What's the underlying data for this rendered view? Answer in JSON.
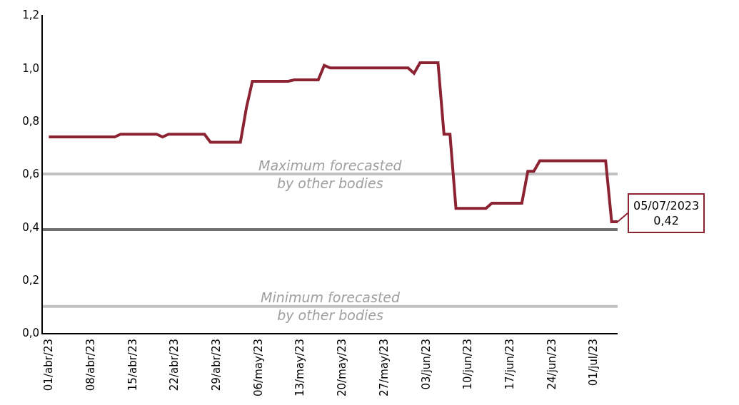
{
  "chart_data": {
    "type": "line",
    "x": [
      "2023-04-01",
      "2023-04-12",
      "2023-04-13",
      "2023-04-19",
      "2023-04-20",
      "2023-04-21",
      "2023-04-27",
      "2023-04-28",
      "2023-05-03",
      "2023-05-04",
      "2023-05-05",
      "2023-05-11",
      "2023-05-12",
      "2023-05-16",
      "2023-05-17",
      "2023-05-18",
      "2023-05-31",
      "2023-06-01",
      "2023-06-02",
      "2023-06-05",
      "2023-06-06",
      "2023-06-07",
      "2023-06-08",
      "2023-06-13",
      "2023-06-14",
      "2023-06-19",
      "2023-06-20",
      "2023-06-21",
      "2023-06-22",
      "2023-07-03",
      "2023-07-04",
      "2023-07-05"
    ],
    "series": [
      {
        "color": "#8b2332",
        "values": [
          0.74,
          0.74,
          0.75,
          0.75,
          0.74,
          0.75,
          0.75,
          0.72,
          0.72,
          0.85,
          0.95,
          0.95,
          0.955,
          0.955,
          1.01,
          1.0,
          1.0,
          0.98,
          1.02,
          1.02,
          0.75,
          0.75,
          0.47,
          0.47,
          0.49,
          0.49,
          0.61,
          0.61,
          0.65,
          0.65,
          0.42,
          0.42
        ]
      }
    ],
    "xlim": [
      "2023-03-31",
      "2023-07-05"
    ],
    "xticks": [
      {
        "value": "2023-04-01",
        "label": "01/abr/23"
      },
      {
        "value": "2023-04-08",
        "label": "08/abr/23"
      },
      {
        "value": "2023-04-15",
        "label": "15/abr/23"
      },
      {
        "value": "2023-04-22",
        "label": "22/abr/23"
      },
      {
        "value": "2023-04-29",
        "label": "29/abr/23"
      },
      {
        "value": "2023-05-06",
        "label": "06/may/23"
      },
      {
        "value": "2023-05-13",
        "label": "13/may/23"
      },
      {
        "value": "2023-05-20",
        "label": "20/may/23"
      },
      {
        "value": "2023-05-27",
        "label": "27/may/23"
      },
      {
        "value": "2023-06-03",
        "label": "03/jun/23"
      },
      {
        "value": "2023-06-10",
        "label": "10/jun/23"
      },
      {
        "value": "2023-06-17",
        "label": "17/jun/23"
      },
      {
        "value": "2023-06-24",
        "label": "24/jun/23"
      },
      {
        "value": "2023-07-01",
        "label": "01/jul/23"
      }
    ],
    "ylim": [
      0,
      1.2
    ],
    "yticks": [
      {
        "value": 0,
        "label": "0,0"
      },
      {
        "value": 0.2,
        "label": "0,2"
      },
      {
        "value": 0.4,
        "label": "0,4"
      },
      {
        "value": 0.6,
        "label": "0,6"
      },
      {
        "value": 0.8,
        "label": "0,8"
      },
      {
        "value": 1.0,
        "label": "1,0"
      },
      {
        "value": 1.2,
        "label": "1,2"
      }
    ],
    "ref_lines": [
      {
        "axis": "y",
        "value": 0.6,
        "label": "Maximum forecasted\nby other bodies",
        "color": "#c0c0c0"
      },
      {
        "axis": "y",
        "value": 0.39,
        "color": "#707070"
      },
      {
        "axis": "y",
        "value": 0.1,
        "label": "Minimum forecasted\nby other bodies",
        "color": "#c0c0c0"
      }
    ],
    "annotations": [
      {
        "text": "05/07/2023\n0,42",
        "x": "2023-07-05",
        "y": 0.42
      }
    ],
    "grid": false,
    "legend": false,
    "marker": "none",
    "line_style": "solid"
  }
}
